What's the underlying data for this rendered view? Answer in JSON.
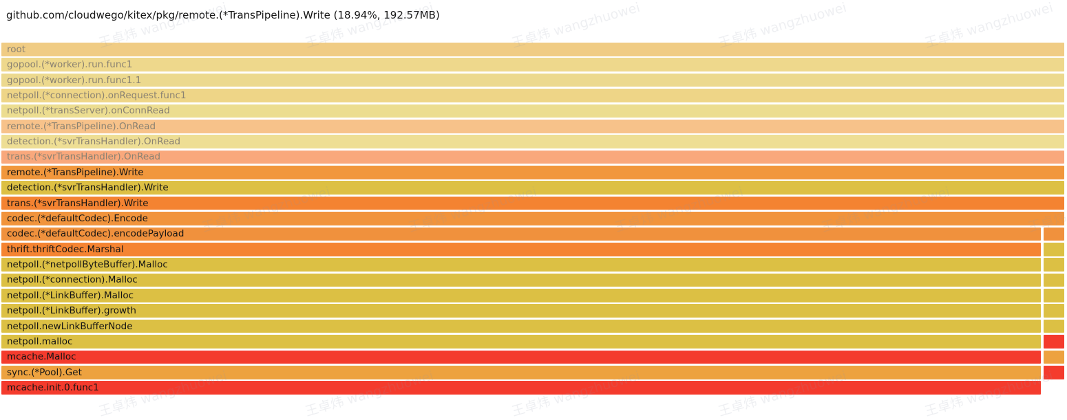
{
  "header": {
    "title": "github.com/cloudwego/kitex/pkg/remote.(*TransPipeline).Write (18.94%, 192.57MB)"
  },
  "watermark": {
    "text": "王卓炜 wangzhuowei"
  },
  "chart_data": {
    "type": "flamegraph",
    "title": "github.com/cloudwego/kitex/pkg/remote.(*TransPipeline).Write (18.94%, 192.57MB)",
    "selected_frame": "remote.(*TransPipeline).Write",
    "selected_percent": "18.94%",
    "selected_size": "192.57MB",
    "frames": [
      {
        "label": "root",
        "color": "#f0cc84",
        "text": "dim",
        "layout": "full"
      },
      {
        "label": "gopool.(*worker).run.func1",
        "color": "#eed88c",
        "text": "dim",
        "layout": "full"
      },
      {
        "label": "gopool.(*worker).run.func1.1",
        "color": "#ecd98e",
        "text": "dim",
        "layout": "full"
      },
      {
        "label": "netpoll.(*connection).onRequest.func1",
        "color": "#eed587",
        "text": "dim",
        "layout": "full"
      },
      {
        "label": "netpoll.(*transServer).onConnRead",
        "color": "#ecdd90",
        "text": "dim",
        "layout": "full"
      },
      {
        "label": "remote.(*TransPipeline).OnRead",
        "color": "#f7c28a",
        "text": "dim",
        "layout": "full"
      },
      {
        "label": "detection.(*svrTransHandler).OnRead",
        "color": "#eede94",
        "text": "dim",
        "layout": "full"
      },
      {
        "label": "trans.(*svrTransHandler).OnRead",
        "color": "#f9a87c",
        "text": "dim",
        "layout": "full"
      },
      {
        "label": "remote.(*TransPipeline).Write",
        "color": "#f1973c",
        "text": "normal",
        "layout": "full"
      },
      {
        "label": "detection.(*svrTransHandler).Write",
        "color": "#ddc044",
        "text": "normal",
        "layout": "full"
      },
      {
        "label": "trans.(*svrTransHandler).Write",
        "color": "#f48331",
        "text": "normal",
        "layout": "full"
      },
      {
        "label": "codec.(*defaultCodec).Encode",
        "color": "#f1943c",
        "text": "normal",
        "layout": "full"
      },
      {
        "label": "codec.(*defaultCodec).encodePayload",
        "color": "#f0913d",
        "text": "normal",
        "layout": "split",
        "right_color": "#f0913d"
      },
      {
        "label": "thrift.thriftCodec.Marshal",
        "color": "#f58432",
        "text": "normal",
        "layout": "split",
        "right_color": "#dcc044"
      },
      {
        "label": "netpoll.(*netpollByteBuffer).Malloc",
        "color": "#dcc044",
        "text": "normal",
        "layout": "split",
        "right_color": "#dcc044"
      },
      {
        "label": "netpoll.(*connection).Malloc",
        "color": "#dcc044",
        "text": "normal",
        "layout": "split",
        "right_color": "#dcc044"
      },
      {
        "label": "netpoll.(*LinkBuffer).Malloc",
        "color": "#dcc044",
        "text": "normal",
        "layout": "split",
        "right_color": "#dcc044"
      },
      {
        "label": "netpoll.(*LinkBuffer).growth",
        "color": "#dcc044",
        "text": "normal",
        "layout": "split",
        "right_color": "#dcc044"
      },
      {
        "label": "netpoll.newLinkBufferNode",
        "color": "#dcc044",
        "text": "normal",
        "layout": "split",
        "right_color": "#dcc044"
      },
      {
        "label": "netpoll.malloc",
        "color": "#dcc044",
        "text": "normal",
        "layout": "split",
        "right_color": "#f43b2d"
      },
      {
        "label": "mcache.Malloc",
        "color": "#f43b2d",
        "text": "normal",
        "layout": "split",
        "right_color": "#eda23f"
      },
      {
        "label": "sync.(*Pool).Get",
        "color": "#eda23f",
        "text": "normal",
        "layout": "split",
        "right_color": "#f43b2d"
      },
      {
        "label": "mcache.init.0.func1",
        "color": "#f43b2d",
        "text": "normal",
        "layout": "left"
      }
    ]
  }
}
